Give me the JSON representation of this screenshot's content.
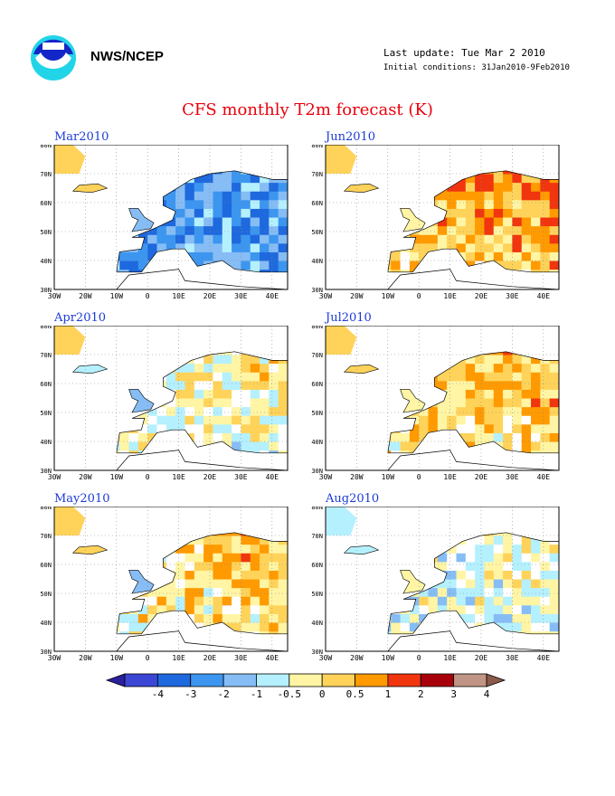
{
  "header": {
    "agency": "NWS/NCEP",
    "last_update": "Last update: Tue Mar  2 2010",
    "initial_conditions": "Initial conditions: 31Jan2010-9Feb2010",
    "title": "CFS monthly T2m forecast (K)"
  },
  "axes": {
    "lon_labels": [
      "30W",
      "20W",
      "10W",
      "0",
      "10E",
      "20E",
      "30E",
      "40E"
    ],
    "lat_labels": [
      "30N",
      "40N",
      "50N",
      "60N",
      "70N",
      "80N"
    ]
  },
  "panels": [
    {
      "label": "Mar2010",
      "col": 0,
      "row": 0
    },
    {
      "label": "Jun2010",
      "col": 1,
      "row": 0
    },
    {
      "label": "Apr2010",
      "col": 0,
      "row": 1
    },
    {
      "label": "Jul2010",
      "col": 1,
      "row": 1
    },
    {
      "label": "May2010",
      "col": 0,
      "row": 2
    },
    {
      "label": "Aug2010",
      "col": 1,
      "row": 2
    }
  ],
  "legend": {
    "ticks": [
      "-4",
      "-3",
      "-2",
      "-1",
      "-0.5",
      "0",
      "0.5",
      "1",
      "2",
      "3",
      "4"
    ],
    "colors": [
      "#2a1f9c",
      "#3b47d4",
      "#1f69de",
      "#3c96f0",
      "#86bdf5",
      "#b5f0ff",
      "#fff5a4",
      "#ffd35a",
      "#ff9a00",
      "#f0350f",
      "#a8000a",
      "#c09586",
      "#8b5a4a"
    ]
  }
}
